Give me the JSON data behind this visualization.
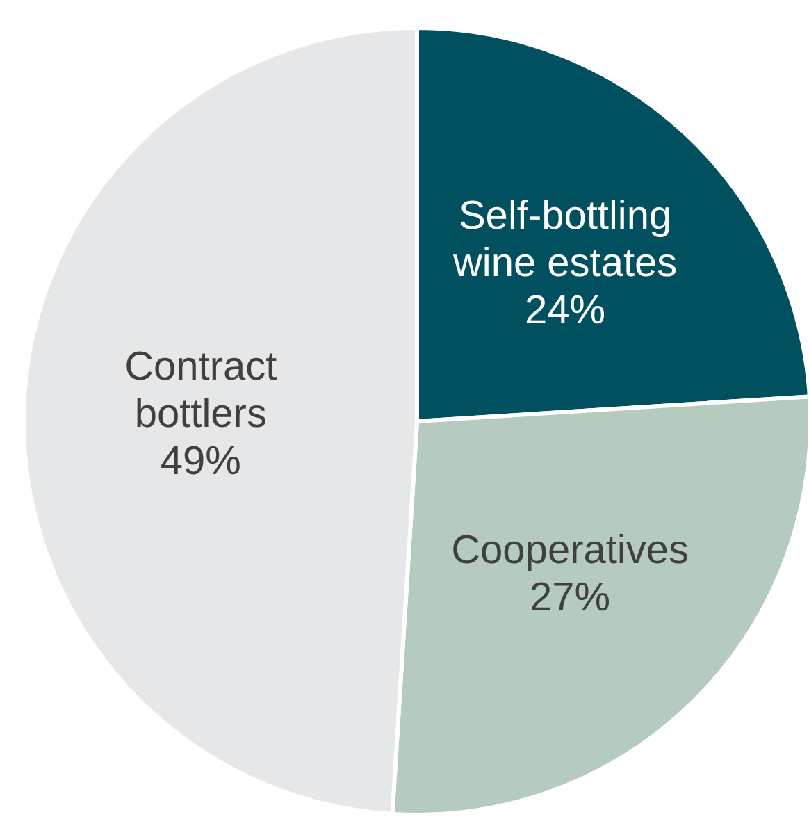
{
  "chart_data": {
    "type": "pie",
    "categories": [
      "Self-bottling wine estates",
      "Cooperatives",
      "Contract bottlers"
    ],
    "values": [
      24,
      27,
      49
    ],
    "colors": [
      "#00505f",
      "#b5cbbf",
      "#e6e7e8"
    ],
    "value_labels": [
      "24%",
      "27%",
      "49%"
    ],
    "legend": false
  }
}
